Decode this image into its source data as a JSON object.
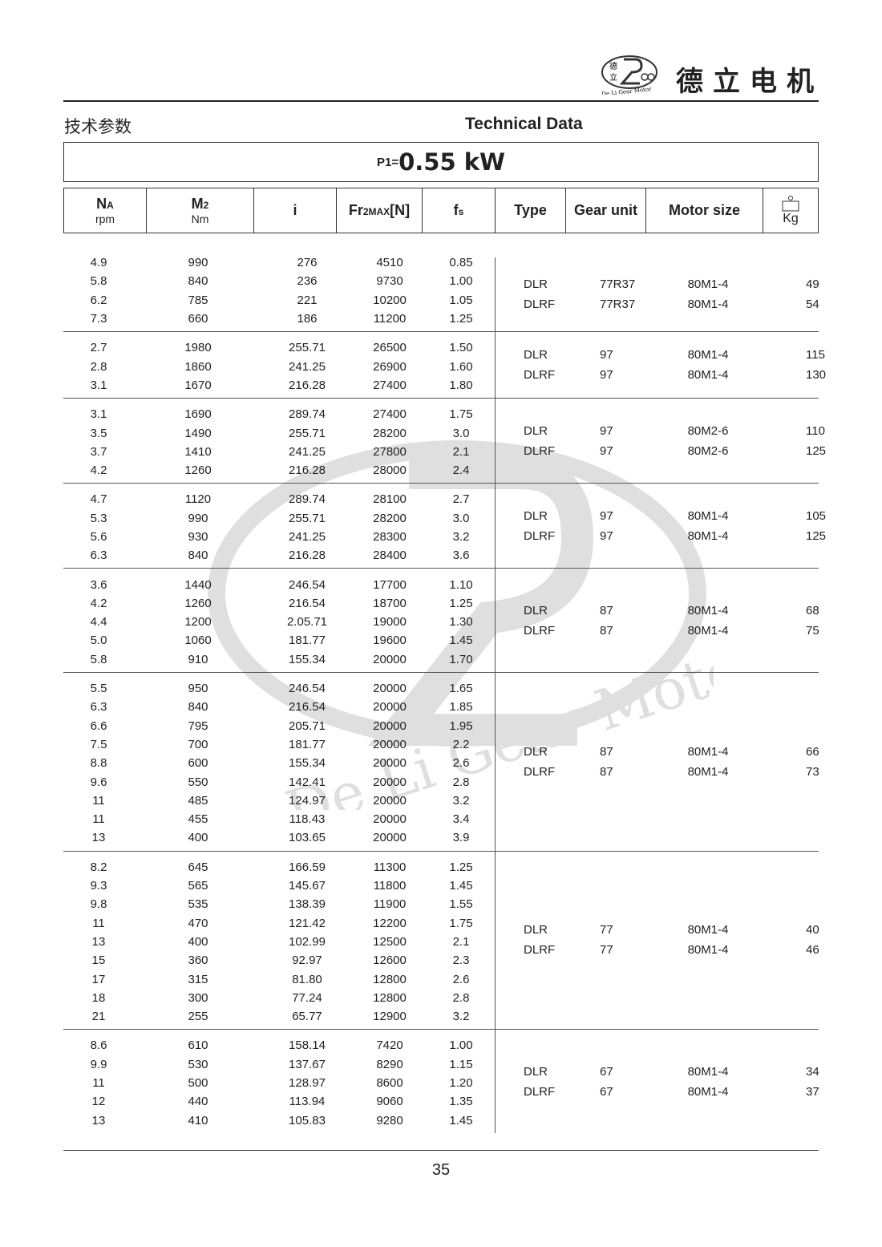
{
  "header": {
    "brand_cn": "德立电机",
    "logo_text": "De Li Gear Motor",
    "title_cn": "技术参数",
    "title_en": "Technical Data"
  },
  "power": {
    "label": "P1=",
    "value": "0.55 kW"
  },
  "columns": {
    "na": "NA",
    "na_unit": "rpm",
    "m2": "M2",
    "m2_unit": "Nm",
    "i": "i",
    "fr": "Fr2MAX[N]",
    "fs": "fs",
    "type": "Type",
    "gear": "Gear unit",
    "motor": "Motor size",
    "kg": "Kg",
    "weight_icon": "weight-icon"
  },
  "groups": [
    {
      "rows": [
        [
          "4.9",
          "990",
          "276",
          "4510",
          "0.85"
        ],
        [
          "5.8",
          "840",
          "236",
          "9730",
          "1.00"
        ],
        [
          "6.2",
          "785",
          "221",
          "10200",
          "1.05"
        ],
        [
          "7.3",
          "660",
          "186",
          "11200",
          "1.25"
        ]
      ],
      "specs": [
        [
          "DLR",
          "77R37",
          "80M1-4",
          "49"
        ],
        [
          "DLRF",
          "77R37",
          "80M1-4",
          "54"
        ]
      ]
    },
    {
      "rows": [
        [
          "2.7",
          "1980",
          "255.71",
          "26500",
          "1.50"
        ],
        [
          "2.8",
          "1860",
          "241.25",
          "26900",
          "1.60"
        ],
        [
          "3.1",
          "1670",
          "216.28",
          "27400",
          "1.80"
        ]
      ],
      "specs": [
        [
          "DLR",
          "97",
          "80M1-4",
          "115"
        ],
        [
          "DLRF",
          "97",
          "80M1-4",
          "130"
        ]
      ]
    },
    {
      "rows": [
        [
          "3.1",
          "1690",
          "289.74",
          "27400",
          "1.75"
        ],
        [
          "3.5",
          "1490",
          "255.71",
          "28200",
          "3.0"
        ],
        [
          "3.7",
          "1410",
          "241.25",
          "27800",
          "2.1"
        ],
        [
          "4.2",
          "1260",
          "216.28",
          "28000",
          "2.4"
        ]
      ],
      "specs": [
        [
          "DLR",
          "97",
          "80M2-6",
          "110"
        ],
        [
          "DLRF",
          "97",
          "80M2-6",
          "125"
        ]
      ]
    },
    {
      "rows": [
        [
          "4.7",
          "1120",
          "289.74",
          "28100",
          "2.7"
        ],
        [
          "5.3",
          "990",
          "255.71",
          "28200",
          "3.0"
        ],
        [
          "5.6",
          "930",
          "241.25",
          "28300",
          "3.2"
        ],
        [
          "6.3",
          "840",
          "216.28",
          "28400",
          "3.6"
        ]
      ],
      "specs": [
        [
          "DLR",
          "97",
          "80M1-4",
          "105"
        ],
        [
          "DLRF",
          "97",
          "80M1-4",
          "125"
        ]
      ]
    },
    {
      "rows": [
        [
          "3.6",
          "1440",
          "246.54",
          "17700",
          "1.10"
        ],
        [
          "4.2",
          "1260",
          "216.54",
          "18700",
          "1.25"
        ],
        [
          "4.4",
          "1200",
          "2.05.71",
          "19000",
          "1.30"
        ],
        [
          "5.0",
          "1060",
          "181.77",
          "19600",
          "1.45"
        ],
        [
          "5.8",
          "910",
          "155.34",
          "20000",
          "1.70"
        ]
      ],
      "specs": [
        [
          "DLR",
          "87",
          "80M1-4",
          "68"
        ],
        [
          "DLRF",
          "87",
          "80M1-4",
          "75"
        ]
      ]
    },
    {
      "rows": [
        [
          "5.5",
          "950",
          "246.54",
          "20000",
          "1.65"
        ],
        [
          "6.3",
          "840",
          "216.54",
          "20000",
          "1.85"
        ],
        [
          "6.6",
          "795",
          "205.71",
          "20000",
          "1.95"
        ],
        [
          "7.5",
          "700",
          "181.77",
          "20000",
          "2.2"
        ],
        [
          "8.8",
          "600",
          "155.34",
          "20000",
          "2.6"
        ],
        [
          "9.6",
          "550",
          "142.41",
          "20000",
          "2.8"
        ],
        [
          "11",
          "485",
          "124.97",
          "20000",
          "3.2"
        ],
        [
          "11",
          "455",
          "118.43",
          "20000",
          "3.4"
        ],
        [
          "13",
          "400",
          "103.65",
          "20000",
          "3.9"
        ]
      ],
      "specs": [
        [
          "DLR",
          "87",
          "80M1-4",
          "66"
        ],
        [
          "DLRF",
          "87",
          "80M1-4",
          "73"
        ]
      ]
    },
    {
      "rows": [
        [
          "8.2",
          "645",
          "166.59",
          "11300",
          "1.25"
        ],
        [
          "9.3",
          "565",
          "145.67",
          "11800",
          "1.45"
        ],
        [
          "9.8",
          "535",
          "138.39",
          "11900",
          "1.55"
        ],
        [
          "11",
          "470",
          "121.42",
          "12200",
          "1.75"
        ],
        [
          "13",
          "400",
          "102.99",
          "12500",
          "2.1"
        ],
        [
          "15",
          "360",
          "92.97",
          "12600",
          "2.3"
        ],
        [
          "17",
          "315",
          "81.80",
          "12800",
          "2.6"
        ],
        [
          "18",
          "300",
          "77.24",
          "12800",
          "2.8"
        ],
        [
          "21",
          "255",
          "65.77",
          "12900",
          "3.2"
        ]
      ],
      "specs": [
        [
          "DLR",
          "77",
          "80M1-4",
          "40"
        ],
        [
          "DLRF",
          "77",
          "80M1-4",
          "46"
        ]
      ]
    },
    {
      "rows": [
        [
          "8.6",
          "610",
          "158.14",
          "7420",
          "1.00"
        ],
        [
          "9.9",
          "530",
          "137.67",
          "8290",
          "1.15"
        ],
        [
          "11",
          "500",
          "128.97",
          "8600",
          "1.20"
        ],
        [
          "12",
          "440",
          "113.94",
          "9060",
          "1.35"
        ],
        [
          "13",
          "410",
          "105.83",
          "9280",
          "1.45"
        ]
      ],
      "specs": [
        [
          "DLR",
          "67",
          "80M1-4",
          "34"
        ],
        [
          "DLRF",
          "67",
          "80M1-4",
          "37"
        ]
      ]
    }
  ],
  "footer": {
    "page": "35"
  }
}
